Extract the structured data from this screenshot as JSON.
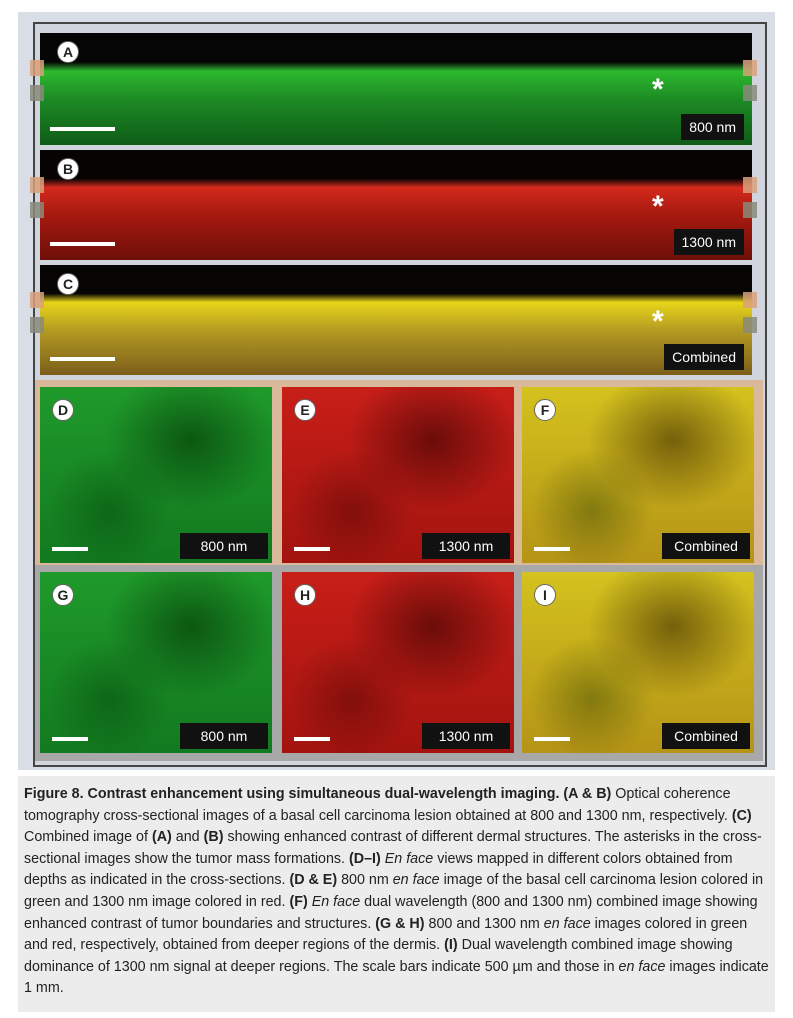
{
  "cross_sections": [
    {
      "letter": "A",
      "label": "800 nm",
      "asterisk": "*",
      "color": "green"
    },
    {
      "letter": "B",
      "label": "1300 nm",
      "asterisk": "*",
      "color": "red"
    },
    {
      "letter": "C",
      "label": "Combined",
      "asterisk": "*",
      "color": "combined"
    }
  ],
  "en_face": [
    {
      "letter": "D",
      "label": "800 nm",
      "color": "green"
    },
    {
      "letter": "E",
      "label": "1300 nm",
      "color": "red"
    },
    {
      "letter": "F",
      "label": "Combined",
      "color": "combined"
    },
    {
      "letter": "G",
      "label": "800 nm",
      "color": "green"
    },
    {
      "letter": "H",
      "label": "1300 nm",
      "color": "red"
    },
    {
      "letter": "I",
      "label": "Combined",
      "color": "combined"
    }
  ],
  "caption": [
    {
      "text": "Figure 8. Contrast enhancement using simultaneous dual-wavelength imaging. (A & B)",
      "bold": true
    },
    {
      "text": " Optical coherence tomography cross-sectional images of a basal cell carcinoma lesion obtained at 800 and 1300 nm, respectively. "
    },
    {
      "text": "(C)",
      "bold": true
    },
    {
      "text": " Combined image of "
    },
    {
      "text": "(A)",
      "bold": true
    },
    {
      "text": " and "
    },
    {
      "text": "(B)",
      "bold": true
    },
    {
      "text": " showing enhanced contrast of different dermal structures. The asterisks in the cross-sectional images show the tumor mass formations. "
    },
    {
      "text": "(D–I) ",
      "bold": true
    },
    {
      "text": "En face",
      "italic": true
    },
    {
      "text": " views mapped in different colors obtained from depths as indicated in the cross-sections. "
    },
    {
      "text": "(D & E)",
      "bold": true
    },
    {
      "text": " 800 nm "
    },
    {
      "text": "en face",
      "italic": true
    },
    {
      "text": " image of the basal cell carcinoma lesion colored in green and 1300 nm image colored in red. "
    },
    {
      "text": "(F) ",
      "bold": true
    },
    {
      "text": "En face",
      "italic": true
    },
    {
      "text": " dual wavelength (800 and 1300 nm) combined image showing enhanced contrast of tumor boundaries and structures. "
    },
    {
      "text": "(G & H)",
      "bold": true
    },
    {
      "text": " 800 and 1300 nm "
    },
    {
      "text": "en face",
      "italic": true
    },
    {
      "text": " images colored in green and red, respectively, obtained from deeper regions of the dermis. "
    },
    {
      "text": "(I)",
      "bold": true
    },
    {
      "text": " Dual wavelength combined image showing dominance of 1300 nm signal at deeper regions. The scale bars indicate 500 µm and those in "
    },
    {
      "text": "en face",
      "italic": true
    },
    {
      "text": " images indicate 1 mm."
    }
  ]
}
